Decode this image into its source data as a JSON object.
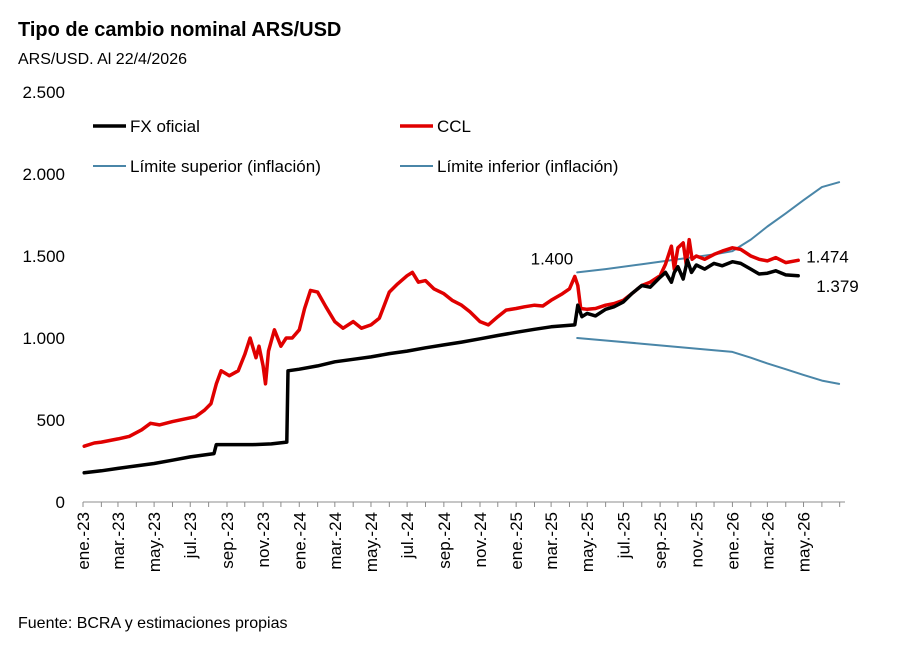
{
  "chart_data": {
    "type": "line",
    "title": "Tipo de cambio nominal ARS/USD",
    "subtitle": "ARS/USD. Al 22/4/2026",
    "source": "Fuente: BCRA y estimaciones propias",
    "ylim": [
      0,
      2500
    ],
    "yticks": [
      {
        "value": 0,
        "label": "0"
      },
      {
        "value": 500,
        "label": "500"
      },
      {
        "value": 1000,
        "label": "1.000"
      },
      {
        "value": 1500,
        "label": "1.500"
      },
      {
        "value": 2000,
        "label": "2.000"
      },
      {
        "value": 2500,
        "label": "2.500"
      }
    ],
    "xlim": [
      "2023-01-01",
      "2026-07-10"
    ],
    "xticks": [
      {
        "date": "2023-01-01",
        "label": "ene.-23"
      },
      {
        "date": "2023-03-01",
        "label": "mar.-23"
      },
      {
        "date": "2023-05-01",
        "label": "may.-23"
      },
      {
        "date": "2023-07-01",
        "label": "jul.-23"
      },
      {
        "date": "2023-09-01",
        "label": "sep.-23"
      },
      {
        "date": "2023-11-01",
        "label": "nov.-23"
      },
      {
        "date": "2024-01-01",
        "label": "ene.-24"
      },
      {
        "date": "2024-03-01",
        "label": "mar.-24"
      },
      {
        "date": "2024-05-01",
        "label": "may.-24"
      },
      {
        "date": "2024-07-01",
        "label": "jul.-24"
      },
      {
        "date": "2024-09-01",
        "label": "sep.-24"
      },
      {
        "date": "2024-11-01",
        "label": "nov.-24"
      },
      {
        "date": "2025-01-01",
        "label": "ene.-25"
      },
      {
        "date": "2025-03-01",
        "label": "mar.-25"
      },
      {
        "date": "2025-05-01",
        "label": "may.-25"
      },
      {
        "date": "2025-07-01",
        "label": "jul.-25"
      },
      {
        "date": "2025-09-01",
        "label": "sep.-25"
      },
      {
        "date": "2025-11-01",
        "label": "nov.-25"
      },
      {
        "date": "2026-01-01",
        "label": "ene.-26"
      },
      {
        "date": "2026-03-01",
        "label": "mar.-26"
      },
      {
        "date": "2026-05-01",
        "label": "may.-26"
      }
    ],
    "legend_placement": "top-left",
    "grid": false,
    "series": [
      {
        "name": "FX oficial",
        "color": "#000000",
        "width": 3.5,
        "points": [
          [
            "2023-01-03",
            178
          ],
          [
            "2023-02-01",
            190
          ],
          [
            "2023-03-01",
            205
          ],
          [
            "2023-04-01",
            220
          ],
          [
            "2023-05-01",
            235
          ],
          [
            "2023-06-01",
            255
          ],
          [
            "2023-07-01",
            275
          ],
          [
            "2023-08-10",
            295
          ],
          [
            "2023-08-14",
            350
          ],
          [
            "2023-09-15",
            350
          ],
          [
            "2023-10-15",
            350
          ],
          [
            "2023-11-15",
            354
          ],
          [
            "2023-12-11",
            365
          ],
          [
            "2023-12-13",
            800
          ],
          [
            "2024-01-01",
            810
          ],
          [
            "2024-02-01",
            830
          ],
          [
            "2024-03-01",
            855
          ],
          [
            "2024-04-01",
            870
          ],
          [
            "2024-05-01",
            885
          ],
          [
            "2024-06-01",
            905
          ],
          [
            "2024-07-01",
            920
          ],
          [
            "2024-08-01",
            940
          ],
          [
            "2024-09-01",
            958
          ],
          [
            "2024-10-01",
            975
          ],
          [
            "2024-11-01",
            995
          ],
          [
            "2024-12-01",
            1015
          ],
          [
            "2025-01-01",
            1035
          ],
          [
            "2025-02-01",
            1053
          ],
          [
            "2025-03-01",
            1068
          ],
          [
            "2025-04-10",
            1080
          ],
          [
            "2025-04-15",
            1200
          ],
          [
            "2025-04-22",
            1130
          ],
          [
            "2025-05-01",
            1150
          ],
          [
            "2025-05-15",
            1135
          ],
          [
            "2025-06-01",
            1175
          ],
          [
            "2025-06-15",
            1190
          ],
          [
            "2025-07-01",
            1220
          ],
          [
            "2025-07-15",
            1270
          ],
          [
            "2025-08-01",
            1320
          ],
          [
            "2025-08-15",
            1310
          ],
          [
            "2025-09-01",
            1370
          ],
          [
            "2025-09-10",
            1400
          ],
          [
            "2025-09-20",
            1340
          ],
          [
            "2025-09-25",
            1400
          ],
          [
            "2025-10-01",
            1435
          ],
          [
            "2025-10-10",
            1360
          ],
          [
            "2025-10-17",
            1475
          ],
          [
            "2025-10-24",
            1400
          ],
          [
            "2025-11-01",
            1445
          ],
          [
            "2025-11-15",
            1420
          ],
          [
            "2025-12-01",
            1455
          ],
          [
            "2025-12-15",
            1440
          ],
          [
            "2026-01-01",
            1465
          ],
          [
            "2026-01-15",
            1455
          ],
          [
            "2026-02-01",
            1420
          ],
          [
            "2026-02-15",
            1390
          ],
          [
            "2026-03-01",
            1395
          ],
          [
            "2026-03-15",
            1410
          ],
          [
            "2026-04-01",
            1385
          ],
          [
            "2026-04-22",
            1379
          ]
        ]
      },
      {
        "name": "CCL",
        "color": "#e00000",
        "width": 3.5,
        "points": [
          [
            "2023-01-03",
            340
          ],
          [
            "2023-01-20",
            360
          ],
          [
            "2023-02-01",
            365
          ],
          [
            "2023-03-01",
            385
          ],
          [
            "2023-03-20",
            400
          ],
          [
            "2023-04-10",
            440
          ],
          [
            "2023-04-25",
            480
          ],
          [
            "2023-05-10",
            470
          ],
          [
            "2023-06-01",
            490
          ],
          [
            "2023-06-20",
            505
          ],
          [
            "2023-07-10",
            520
          ],
          [
            "2023-07-25",
            560
          ],
          [
            "2023-08-05",
            600
          ],
          [
            "2023-08-14",
            720
          ],
          [
            "2023-08-22",
            800
          ],
          [
            "2023-09-05",
            770
          ],
          [
            "2023-09-20",
            800
          ],
          [
            "2023-10-01",
            900
          ],
          [
            "2023-10-10",
            1000
          ],
          [
            "2023-10-20",
            880
          ],
          [
            "2023-10-25",
            950
          ],
          [
            "2023-11-01",
            830
          ],
          [
            "2023-11-05",
            720
          ],
          [
            "2023-11-10",
            920
          ],
          [
            "2023-11-20",
            1050
          ],
          [
            "2023-12-01",
            950
          ],
          [
            "2023-12-10",
            1000
          ],
          [
            "2023-12-20",
            1000
          ],
          [
            "2024-01-01",
            1050
          ],
          [
            "2024-01-10",
            1180
          ],
          [
            "2024-01-20",
            1290
          ],
          [
            "2024-02-01",
            1280
          ],
          [
            "2024-02-15",
            1190
          ],
          [
            "2024-03-01",
            1100
          ],
          [
            "2024-03-15",
            1060
          ],
          [
            "2024-04-01",
            1100
          ],
          [
            "2024-04-15",
            1060
          ],
          [
            "2024-05-01",
            1080
          ],
          [
            "2024-05-15",
            1120
          ],
          [
            "2024-06-01",
            1280
          ],
          [
            "2024-06-15",
            1330
          ],
          [
            "2024-07-01",
            1380
          ],
          [
            "2024-07-10",
            1400
          ],
          [
            "2024-07-20",
            1340
          ],
          [
            "2024-08-01",
            1350
          ],
          [
            "2024-08-15",
            1300
          ],
          [
            "2024-09-01",
            1270
          ],
          [
            "2024-09-15",
            1230
          ],
          [
            "2024-10-01",
            1200
          ],
          [
            "2024-10-15",
            1160
          ],
          [
            "2024-11-01",
            1100
          ],
          [
            "2024-11-15",
            1080
          ],
          [
            "2024-12-01",
            1130
          ],
          [
            "2024-12-15",
            1170
          ],
          [
            "2025-01-01",
            1180
          ],
          [
            "2025-01-15",
            1190
          ],
          [
            "2025-02-01",
            1200
          ],
          [
            "2025-02-15",
            1195
          ],
          [
            "2025-03-01",
            1230
          ],
          [
            "2025-03-20",
            1270
          ],
          [
            "2025-04-01",
            1300
          ],
          [
            "2025-04-10",
            1375
          ],
          [
            "2025-04-15",
            1320
          ],
          [
            "2025-04-20",
            1180
          ],
          [
            "2025-05-01",
            1175
          ],
          [
            "2025-05-15",
            1180
          ],
          [
            "2025-06-01",
            1200
          ],
          [
            "2025-06-15",
            1210
          ],
          [
            "2025-07-01",
            1230
          ],
          [
            "2025-07-15",
            1270
          ],
          [
            "2025-08-01",
            1320
          ],
          [
            "2025-08-15",
            1340
          ],
          [
            "2025-09-01",
            1380
          ],
          [
            "2025-09-10",
            1450
          ],
          [
            "2025-09-20",
            1560
          ],
          [
            "2025-09-25",
            1420
          ],
          [
            "2025-10-01",
            1550
          ],
          [
            "2025-10-10",
            1580
          ],
          [
            "2025-10-15",
            1450
          ],
          [
            "2025-10-20",
            1600
          ],
          [
            "2025-10-25",
            1480
          ],
          [
            "2025-11-01",
            1500
          ],
          [
            "2025-11-15",
            1480
          ],
          [
            "2025-12-01",
            1510
          ],
          [
            "2025-12-15",
            1530
          ],
          [
            "2026-01-01",
            1550
          ],
          [
            "2026-01-15",
            1540
          ],
          [
            "2026-02-01",
            1500
          ],
          [
            "2026-02-15",
            1480
          ],
          [
            "2026-03-01",
            1470
          ],
          [
            "2026-03-15",
            1490
          ],
          [
            "2026-04-01",
            1460
          ],
          [
            "2026-04-22",
            1474
          ]
        ]
      },
      {
        "name": "Límite superior (inflación)",
        "color": "#4a86a8",
        "width": 2,
        "points": [
          [
            "2025-04-14",
            1400
          ],
          [
            "2025-06-01",
            1420
          ],
          [
            "2025-08-01",
            1450
          ],
          [
            "2025-10-01",
            1480
          ],
          [
            "2025-12-01",
            1510
          ],
          [
            "2026-01-01",
            1530
          ],
          [
            "2026-02-01",
            1600
          ],
          [
            "2026-03-01",
            1680
          ],
          [
            "2026-04-01",
            1760
          ],
          [
            "2026-05-01",
            1840
          ],
          [
            "2026-06-01",
            1920
          ],
          [
            "2026-06-30",
            1950
          ]
        ]
      },
      {
        "name": "Límite inferior (inflación)",
        "color": "#4a86a8",
        "width": 2,
        "points": [
          [
            "2025-04-14",
            1000
          ],
          [
            "2025-06-01",
            985
          ],
          [
            "2025-08-01",
            965
          ],
          [
            "2025-10-01",
            945
          ],
          [
            "2025-12-01",
            925
          ],
          [
            "2026-01-01",
            915
          ],
          [
            "2026-02-01",
            880
          ],
          [
            "2026-03-01",
            845
          ],
          [
            "2026-04-01",
            810
          ],
          [
            "2026-05-01",
            775
          ],
          [
            "2026-06-01",
            740
          ],
          [
            "2026-06-30",
            720
          ]
        ]
      }
    ],
    "annotations": [
      {
        "text": "1.400",
        "date": "2025-04-14",
        "value": 1400,
        "anchor": "end"
      },
      {
        "text": "1.474",
        "date": "2026-04-22",
        "value": 1474,
        "anchor": "start"
      },
      {
        "text": "1.379",
        "date": "2026-04-22",
        "value": 1379,
        "anchor": "start"
      }
    ]
  }
}
